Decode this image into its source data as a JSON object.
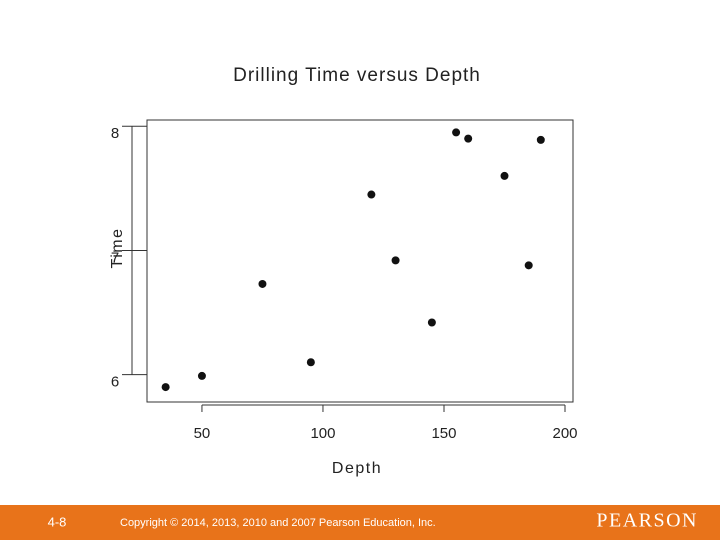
{
  "chart_data": {
    "type": "scatter",
    "title": "Drilling Time versus Depth",
    "x_label": "Depth",
    "y_label": "Time",
    "x": [
      35,
      50,
      75,
      95,
      120,
      130,
      145,
      155,
      160,
      175,
      185,
      190
    ],
    "values": [
      5.9,
      5.99,
      6.73,
      6.1,
      7.45,
      6.92,
      6.42,
      7.95,
      7.9,
      7.6,
      6.88,
      7.89
    ],
    "color": "#111111",
    "xlim": [
      27.3,
      203.3
    ],
    "ylim": [
      5.78,
      8.05
    ],
    "xticks": [
      50,
      100,
      150,
      200
    ],
    "yticks": [
      6,
      7,
      8
    ]
  },
  "footer": {
    "page": "4-8",
    "copyright": "Copyright © 2014, 2013, 2010 and 2007 Pearson Education, Inc.",
    "brand": "PEARSON"
  }
}
